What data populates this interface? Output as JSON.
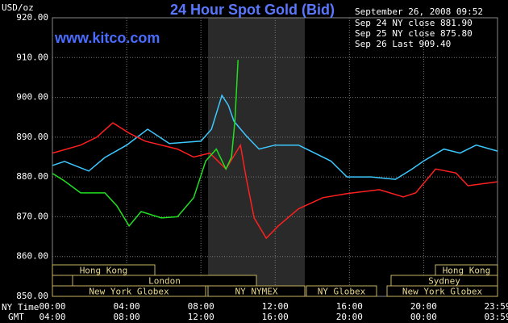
{
  "chart_data": {
    "type": "line",
    "title": "24 Hour Spot Gold (Bid)",
    "watermark": "www.kitco.com",
    "y_label": "USD/oz",
    "date_label": "September 26, 2008 09:52",
    "x_row_label": "NY Time",
    "x2_row_label": "GMT",
    "xlim": [
      0,
      23.98
    ],
    "ylim": [
      850,
      920
    ],
    "xticks": [
      {
        "value": 0,
        "label": "00:00"
      },
      {
        "value": 4,
        "label": "04:00"
      },
      {
        "value": 8,
        "label": "08:00"
      },
      {
        "value": 12,
        "label": "12:00"
      },
      {
        "value": 16,
        "label": "16:00"
      },
      {
        "value": 20,
        "label": "20:00"
      },
      {
        "value": 23.98,
        "label": "23:59"
      }
    ],
    "gmt_ticks": [
      "04:00",
      "08:00",
      "12:00",
      "16:00",
      "20:00",
      "00:00",
      "03:59"
    ],
    "yticks": [
      {
        "value": 850,
        "label": "850.00"
      },
      {
        "value": 860,
        "label": "860.00"
      },
      {
        "value": 870,
        "label": "870.00"
      },
      {
        "value": 880,
        "label": "880.00"
      },
      {
        "value": 890,
        "label": "890.00"
      },
      {
        "value": 900,
        "label": "900.00"
      },
      {
        "value": 910,
        "label": "910.00"
      },
      {
        "value": 920,
        "label": "920.00"
      }
    ],
    "grid": true,
    "sessions": [
      "Hong Kong",
      "London",
      "New York Globex",
      "NY NYMEX",
      "NY Globex",
      "Hong Kong",
      "Sydney",
      "New York Globex"
    ],
    "series": [
      {
        "name": "Sep 24 NY close 881.90",
        "color": "#3cc8ff",
        "x": [
          0,
          0.65,
          1.96,
          2.83,
          4,
          5.13,
          6.3,
          8,
          8.57,
          9.13,
          9.48,
          9.78,
          10.43,
          11.13,
          12,
          13.26,
          14.13,
          15,
          15.87,
          17.17,
          18.48,
          19.35,
          20,
          21.09,
          21.96,
          22.83,
          23.98
        ],
        "values": [
          882.9,
          883.9,
          881.5,
          884.9,
          888,
          892,
          888.4,
          889,
          892,
          900.5,
          898,
          894,
          890.4,
          887,
          888,
          888,
          886,
          884,
          880,
          880,
          879.4,
          881.9,
          884,
          887,
          886,
          888,
          886.5
        ]
      },
      {
        "name": "Sep 25 NY close 875.80",
        "color": "#ff2020",
        "x": [
          0,
          1.52,
          2.39,
          3.26,
          4.13,
          5,
          6.74,
          7.61,
          8.48,
          9.35,
          10.13,
          10.43,
          10.87,
          11.52,
          12.17,
          13.26,
          14.57,
          15.87,
          17.61,
          18.91,
          19.57,
          20.65,
          21.74,
          22.39,
          23.98
        ],
        "values": [
          886,
          888,
          890,
          893.6,
          891,
          889,
          887,
          885,
          886,
          882,
          888,
          880,
          869.7,
          864.6,
          867.7,
          872,
          874.8,
          875.8,
          876.8,
          875,
          876,
          882,
          881,
          877.8,
          878.8
        ]
      },
      {
        "name": "Sep 26 Last 909.40",
        "color": "#20e020",
        "x": [
          0,
          0.65,
          1.52,
          2.83,
          3.48,
          4.13,
          4.78,
          5.87,
          6.74,
          7.61,
          8.26,
          8.83,
          9.35,
          9.65,
          9.83,
          9.91,
          10
        ],
        "values": [
          880.9,
          879,
          876,
          876,
          872.7,
          867.7,
          871.3,
          869.7,
          870,
          874.8,
          884,
          887,
          882,
          885,
          894,
          901,
          909.4
        ]
      }
    ]
  }
}
